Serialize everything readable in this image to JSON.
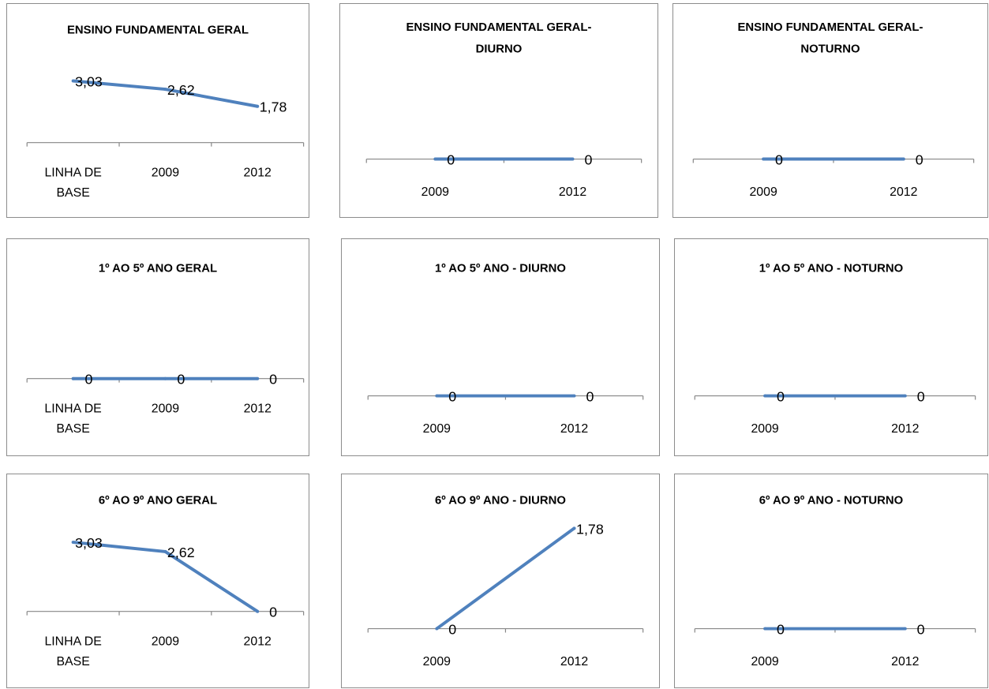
{
  "chart_data": [
    {
      "type": "line",
      "title": "ENSINO FUNDAMENTAL GERAL",
      "categories": [
        "LINHA DE BASE",
        "2009",
        "2012"
      ],
      "values": [
        3.03,
        2.62,
        1.78
      ],
      "data_labels": [
        "3,03",
        "2,62",
        "1,78"
      ],
      "ylim": [
        0,
        3.5
      ],
      "color": "#4f81bd"
    },
    {
      "type": "line",
      "title": "ENSINO FUNDAMENTAL GERAL-DIURNO",
      "categories": [
        "2009",
        "2012"
      ],
      "values": [
        0,
        0
      ],
      "data_labels": [
        "0",
        "0"
      ],
      "ylim": [
        0,
        1
      ],
      "color": "#4f81bd"
    },
    {
      "type": "line",
      "title": "ENSINO FUNDAMENTAL GERAL-NOTURNO",
      "categories": [
        "2009",
        "2012"
      ],
      "values": [
        0,
        0
      ],
      "data_labels": [
        "0",
        "0"
      ],
      "ylim": [
        0,
        1
      ],
      "color": "#4f81bd"
    },
    {
      "type": "line",
      "title": "1º AO 5º ANO GERAL",
      "categories": [
        "LINHA DE BASE",
        "2009",
        "2012"
      ],
      "values": [
        0,
        0,
        0
      ],
      "data_labels": [
        "0",
        "0",
        "0"
      ],
      "ylim": [
        0,
        1
      ],
      "color": "#4f81bd"
    },
    {
      "type": "line",
      "title": "1º AO 5º ANO - DIURNO",
      "categories": [
        "2009",
        "2012"
      ],
      "values": [
        0,
        0
      ],
      "data_labels": [
        "0",
        "0"
      ],
      "ylim": [
        0,
        1
      ],
      "color": "#4f81bd"
    },
    {
      "type": "line",
      "title": "1º AO 5º ANO - NOTURNO",
      "categories": [
        "2009",
        "2012"
      ],
      "values": [
        0,
        0
      ],
      "data_labels": [
        "0",
        "0"
      ],
      "ylim": [
        0,
        1
      ],
      "color": "#4f81bd"
    },
    {
      "type": "line",
      "title": "6º AO 9º ANO GERAL",
      "categories": [
        "LINHA DE BASE",
        "2009",
        "2012"
      ],
      "values": [
        3.03,
        2.62,
        0
      ],
      "data_labels": [
        "3,03",
        "2,62",
        "0"
      ],
      "ylim": [
        0,
        3.5
      ],
      "color": "#4f81bd"
    },
    {
      "type": "line",
      "title": "6º AO 9º ANO - DIURNO",
      "categories": [
        "2009",
        "2012"
      ],
      "values": [
        0,
        1.78
      ],
      "data_labels": [
        "0",
        "1,78"
      ],
      "ylim": [
        0,
        2
      ],
      "color": "#4f81bd"
    },
    {
      "type": "line",
      "title": "6º AO 9º ANO - NOTURNO",
      "categories": [
        "2009",
        "2012"
      ],
      "values": [
        0,
        0
      ],
      "data_labels": [
        "0",
        "0"
      ],
      "ylim": [
        0,
        1
      ],
      "color": "#4f81bd"
    }
  ]
}
